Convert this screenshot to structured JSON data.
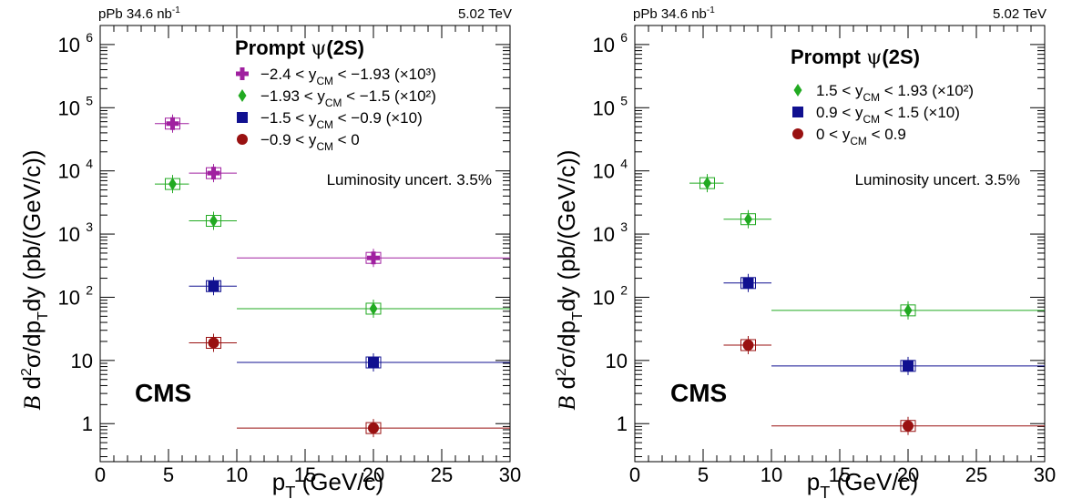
{
  "figure": {
    "x_axis_label": "p_T (GeV/c)",
    "y_axis_label": "B d²σ/dp_T dy (pb/(GeV/c))"
  },
  "chart_data": [
    {
      "type": "scatter",
      "panel": "left",
      "top_left_label": "pPb 34.6 nb-1",
      "top_right_label": "5.02 TeV",
      "experiment": "CMS",
      "legend_title": "Prompt ψ(2S)",
      "annotation": "Luminosity uncert. 3.5%",
      "xlabel": "p_T (GeV/c)",
      "ylabel": "B d²σ/dp_T dy (pb/(GeV/c))",
      "xlim": [
        0,
        30
      ],
      "ylim": [
        0.25,
        2000000
      ],
      "yscale": "log",
      "x_ticks": [
        "0",
        "5",
        "10",
        "15",
        "20",
        "25",
        "30"
      ],
      "y_ticks": [
        "1",
        "10",
        "10^2",
        "10^3",
        "10^4",
        "10^5",
        "10^6"
      ],
      "grid": false,
      "legend_position": "top-right",
      "series": [
        {
          "name": "−2.4 < y_CM < −1.93 (×10³)",
          "color": "#a020a0",
          "marker": "cross",
          "points": [
            {
              "x": 5.3,
              "xlow": 4.0,
              "xhigh": 6.5,
              "y": 56000
            },
            {
              "x": 8.3,
              "xlow": 6.5,
              "xhigh": 10.0,
              "y": 9200
            },
            {
              "x": 20.0,
              "xlow": 10.0,
              "xhigh": 30.0,
              "y": 420
            }
          ]
        },
        {
          "name": "−1.93 < y_CM < −1.5 (×10²)",
          "color": "#22aa22",
          "marker": "diamond",
          "points": [
            {
              "x": 5.3,
              "xlow": 4.0,
              "xhigh": 6.5,
              "y": 6200
            },
            {
              "x": 8.3,
              "xlow": 6.5,
              "xhigh": 10.0,
              "y": 1620
            },
            {
              "x": 20.0,
              "xlow": 10.0,
              "xhigh": 30.0,
              "y": 66
            }
          ]
        },
        {
          "name": "−1.5 < y_CM < −0.9 (×10)",
          "color": "#101090",
          "marker": "square",
          "points": [
            {
              "x": 8.3,
              "xlow": 6.5,
              "xhigh": 10.0,
              "y": 150
            },
            {
              "x": 20.0,
              "xlow": 10.0,
              "xhigh": 30.0,
              "y": 9.3
            }
          ]
        },
        {
          "name": "−0.9 < y_CM < 0",
          "color": "#991111",
          "marker": "circle",
          "points": [
            {
              "x": 8.3,
              "xlow": 6.5,
              "xhigh": 10.0,
              "y": 19
            },
            {
              "x": 20.0,
              "xlow": 10.0,
              "xhigh": 30.0,
              "y": 0.85
            }
          ]
        }
      ]
    },
    {
      "type": "scatter",
      "panel": "right",
      "top_left_label": "pPb 34.6 nb-1",
      "top_right_label": "5.02 TeV",
      "experiment": "CMS",
      "legend_title": "Prompt ψ(2S)",
      "annotation": "Luminosity uncert. 3.5%",
      "xlabel": "p_T (GeV/c)",
      "ylabel": "B d²σ/dp_T dy (pb/(GeV/c))",
      "xlim": [
        0,
        30
      ],
      "ylim": [
        0.25,
        2000000
      ],
      "yscale": "log",
      "x_ticks": [
        "0",
        "5",
        "10",
        "15",
        "20",
        "25",
        "30"
      ],
      "y_ticks": [
        "1",
        "10",
        "10^2",
        "10^3",
        "10^4",
        "10^5",
        "10^6"
      ],
      "grid": false,
      "legend_position": "top-right",
      "series": [
        {
          "name": "1.5 < y_CM < 1.93 (×10²)",
          "color": "#22aa22",
          "marker": "diamond",
          "points": [
            {
              "x": 5.3,
              "xlow": 4.0,
              "xhigh": 6.5,
              "y": 6400
            },
            {
              "x": 8.3,
              "xlow": 6.5,
              "xhigh": 10.0,
              "y": 1720
            },
            {
              "x": 20.0,
              "xlow": 10.0,
              "xhigh": 30.0,
              "y": 62
            }
          ]
        },
        {
          "name": "0.9 < y_CM < 1.5 (×10)",
          "color": "#101090",
          "marker": "square",
          "points": [
            {
              "x": 8.3,
              "xlow": 6.5,
              "xhigh": 10.0,
              "y": 168
            },
            {
              "x": 20.0,
              "xlow": 10.0,
              "xhigh": 30.0,
              "y": 8.2
            }
          ]
        },
        {
          "name": "0 < y_CM < 0.9",
          "color": "#991111",
          "marker": "circle",
          "points": [
            {
              "x": 8.3,
              "xlow": 6.5,
              "xhigh": 10.0,
              "y": 17.5
            },
            {
              "x": 20.0,
              "xlow": 10.0,
              "xhigh": 30.0,
              "y": 0.92
            }
          ]
        }
      ]
    }
  ]
}
